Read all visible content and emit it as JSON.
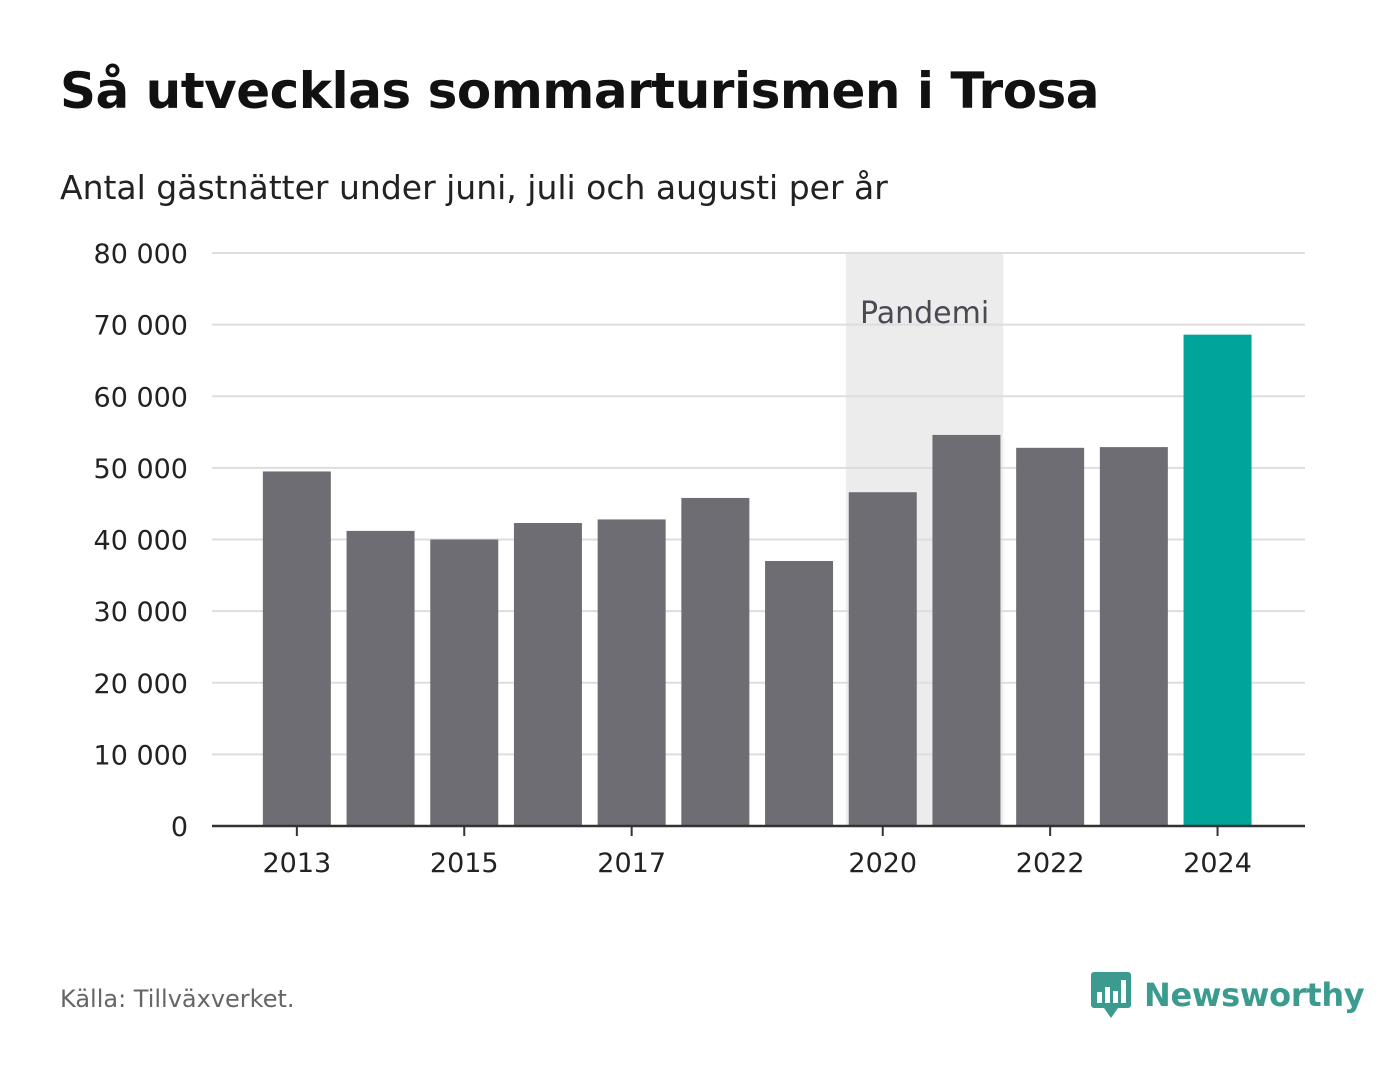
{
  "title": "Så utvecklas sommarturismen i Trosa",
  "subtitle": "Antal gästnätter under juni, juli och augusti per år",
  "source": "Källa: Tillväxverket.",
  "brand": {
    "name": "Newsworthy",
    "icon": "newsworthy-logo-icon",
    "color": "#3b9b8f"
  },
  "chart_data": {
    "type": "bar",
    "categories": [
      "2013",
      "2014",
      "2015",
      "2016",
      "2017",
      "2018",
      "2019",
      "2020",
      "2021",
      "2022",
      "2023",
      "2024"
    ],
    "values": [
      49500,
      41200,
      40000,
      42300,
      42800,
      45800,
      37000,
      46600,
      54600,
      52800,
      52900,
      68600
    ],
    "x_tick_labels": [
      "2013",
      "2015",
      "2017",
      "2020",
      "2022",
      "2024"
    ],
    "y_tick_labels": [
      "0",
      "10 000",
      "20 000",
      "30 000",
      "40 000",
      "50 000",
      "60 000",
      "70 000",
      "80 000"
    ],
    "ylim": [
      0,
      80000
    ],
    "grid": true,
    "colors": {
      "default": "#6e6d73",
      "highlight": "#00a499",
      "highlight_category": "2024"
    },
    "annotations": [
      {
        "label": "Pandemi",
        "from": "2020",
        "to": "2021",
        "shade": "#ececec"
      }
    ]
  }
}
